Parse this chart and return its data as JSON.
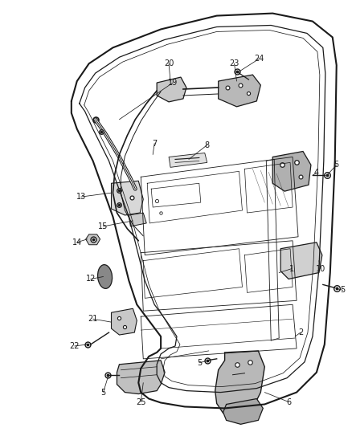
{
  "background_color": "#ffffff",
  "figure_width": 4.38,
  "figure_height": 5.33,
  "dpi": 100,
  "line_color": "#1a1a1a",
  "label_color": "#1a1a1a",
  "label_fontsize": 7.0
}
